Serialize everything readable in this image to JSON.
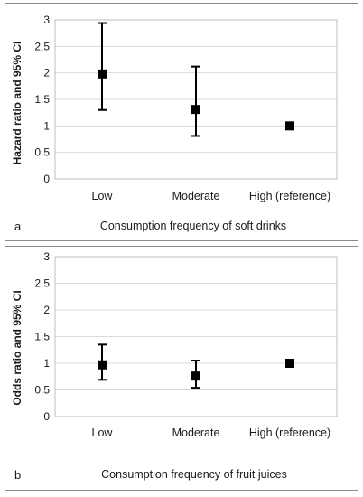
{
  "chart_data": [
    {
      "type": "scatter",
      "panel_label": "a",
      "categories": [
        "Low",
        "Moderate",
        "High (reference)"
      ],
      "series": [
        {
          "values": [
            1.98,
            1.31,
            1.0
          ],
          "ci_lower": [
            1.3,
            0.81,
            null
          ],
          "ci_upper": [
            2.94,
            2.12,
            null
          ]
        }
      ],
      "ylabel": "Hazard ratio and 95% CI",
      "xlabel": "Consumption frequency of soft drinks",
      "ylim": [
        0,
        3
      ],
      "yticks": [
        "0",
        "0.5",
        "1",
        "1.5",
        "2",
        "2.5",
        "3"
      ],
      "grid": true,
      "marker_color": "#000000",
      "grid_color": "#d9d9d9"
    },
    {
      "type": "scatter",
      "panel_label": "b",
      "categories": [
        "Low",
        "Moderate",
        "High (reference)"
      ],
      "series": [
        {
          "values": [
            0.97,
            0.76,
            1.0
          ],
          "ci_lower": [
            0.69,
            0.54,
            null
          ],
          "ci_upper": [
            1.35,
            1.05,
            null
          ]
        }
      ],
      "ylabel": "Odds ratio and 95% CI",
      "xlabel": "Consumption frequency of fruit juices",
      "ylim": [
        0,
        3
      ],
      "yticks": [
        "0",
        "0.5",
        "1",
        "1.5",
        "2",
        "2.5",
        "3"
      ],
      "grid": true,
      "marker_color": "#000000",
      "grid_color": "#d9d9d9"
    }
  ]
}
